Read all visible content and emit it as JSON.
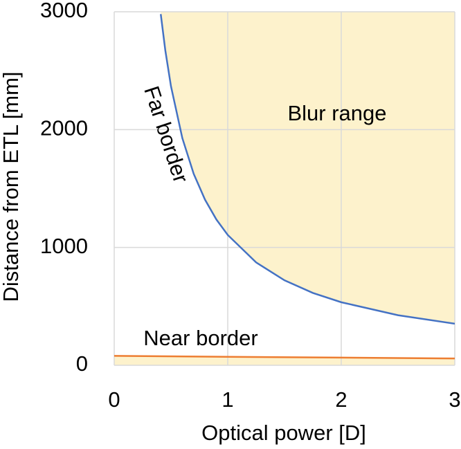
{
  "chart_data": {
    "type": "line",
    "x_label": "Optical power [D]",
    "y_label": "Distance from ETL [mm]",
    "annotations": [
      "Blur range"
    ],
    "fill_color": "#fdf2cc",
    "series": [
      {
        "name": "Far border",
        "color": "#4472c4",
        "x": [
          0.41,
          0.45,
          0.5,
          0.6,
          0.7,
          0.8,
          0.9,
          1,
          1.25,
          1.5,
          1.75,
          2,
          2.5,
          3
        ],
        "values": [
          2980,
          2673,
          2368,
          1928,
          1625,
          1405,
          1237,
          1106,
          873,
          721,
          614,
          535,
          425,
          353
        ]
      },
      {
        "name": "Near border",
        "color": "#ed7d31",
        "x": [
          0,
          1,
          2,
          3
        ],
        "values": [
          80,
          72,
          65,
          58
        ]
      }
    ],
    "xlim": [
      0,
      3
    ],
    "xticks": [
      0,
      1,
      2,
      3
    ],
    "ylim": [
      0,
      3000
    ],
    "yticks": [
      0,
      1000,
      2000,
      3000
    ],
    "grid": true
  }
}
